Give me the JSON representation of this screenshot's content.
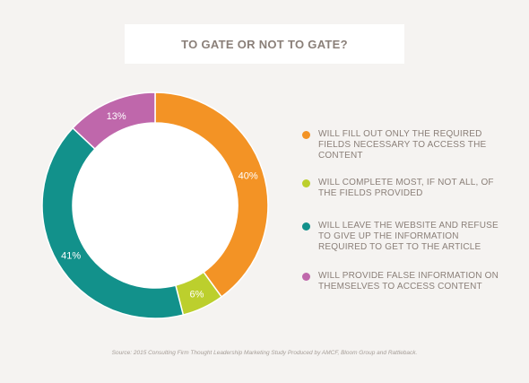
{
  "title": "TO GATE OR NOT TO GATE?",
  "source": "Source: 2015 Consulting Firm Thought Leadership Marketing Study Produced by AMCF, Bloom Group and Rattleback.",
  "chart_data": {
    "type": "pie",
    "title": "TO GATE OR NOT TO GATE?",
    "legend_placement": "right",
    "donut": true,
    "slices": [
      {
        "label": "WILL FILL OUT ONLY THE REQUIRED FIELDS NECESSARY TO ACCESS THE CONTENT",
        "value": 40,
        "display": "40%",
        "color": "#f39325"
      },
      {
        "label": "WILL COMPLETE MOST, IF NOT ALL, OF THE FIELDS PROVIDED",
        "value": 6,
        "display": "6%",
        "color": "#bccf2d"
      },
      {
        "label": "WILL LEAVE THE WEBSITE AND REFUSE TO GIVE UP THE INFORMATION REQUIRED TO GET TO THE ARTICLE",
        "value": 41,
        "display": "41%",
        "color": "#12918b"
      },
      {
        "label": "WILL PROVIDE FALSE INFORMATION ON THEMSELVES TO ACCESS CONTENT",
        "value": 13,
        "display": "13%",
        "color": "#bf67ab"
      }
    ]
  }
}
